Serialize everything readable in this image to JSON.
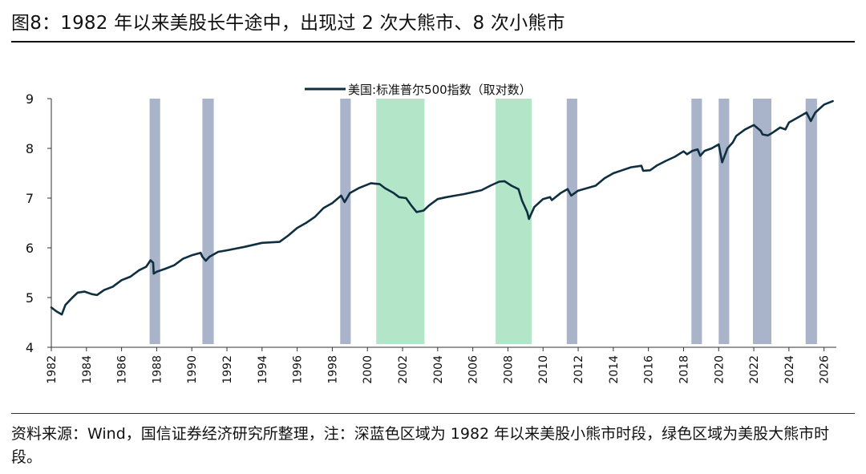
{
  "figure": {
    "title": "图8：1982 年以来美股长牛途中，出现过 2 次大熊市、8 次小熊市",
    "source_note": "资料来源：Wind，国信证券经济研究所整理，注：深蓝色区域为 1982 年以来美股小熊市时段，绿色区域为美股大熊市时段。"
  },
  "colors": {
    "line": "#0f2f40",
    "small_bear_band": "#a9b4ca",
    "big_bear_band": "#b3e6c8",
    "axis": "#333333",
    "text": "#111111"
  },
  "chart_data": {
    "type": "line",
    "title": "",
    "xlabel": "",
    "ylabel": "",
    "xlim": [
      1982,
      2026.7
    ],
    "ylim": [
      4,
      9
    ],
    "grid": false,
    "legend_position": "top-center",
    "x_ticks": [
      "1982",
      "1984",
      "1986",
      "1988",
      "1990",
      "1992",
      "1994",
      "1996",
      "1998",
      "2000",
      "2002",
      "2004",
      "2006",
      "2008",
      "2010",
      "2012",
      "2014",
      "2016",
      "2018",
      "2020",
      "2022",
      "2024",
      "2026"
    ],
    "y_ticks": [
      "4",
      "5",
      "6",
      "7",
      "8",
      "9"
    ],
    "series": [
      {
        "name": "美国:标准普尔500指数（取对数）",
        "points": [
          [
            1982.0,
            4.8
          ],
          [
            1982.3,
            4.72
          ],
          [
            1982.6,
            4.66
          ],
          [
            1982.8,
            4.85
          ],
          [
            1983.2,
            5.0
          ],
          [
            1983.5,
            5.1
          ],
          [
            1983.9,
            5.12
          ],
          [
            1984.3,
            5.07
          ],
          [
            1984.6,
            5.05
          ],
          [
            1985.0,
            5.15
          ],
          [
            1985.5,
            5.22
          ],
          [
            1986.0,
            5.35
          ],
          [
            1986.5,
            5.42
          ],
          [
            1987.0,
            5.55
          ],
          [
            1987.4,
            5.62
          ],
          [
            1987.65,
            5.75
          ],
          [
            1987.8,
            5.7
          ],
          [
            1987.83,
            5.48
          ],
          [
            1988.0,
            5.52
          ],
          [
            1988.5,
            5.58
          ],
          [
            1989.0,
            5.65
          ],
          [
            1989.5,
            5.78
          ],
          [
            1990.0,
            5.85
          ],
          [
            1990.5,
            5.9
          ],
          [
            1990.6,
            5.82
          ],
          [
            1990.8,
            5.74
          ],
          [
            1991.0,
            5.82
          ],
          [
            1991.5,
            5.92
          ],
          [
            1992.0,
            5.95
          ],
          [
            1993.0,
            6.02
          ],
          [
            1994.0,
            6.1
          ],
          [
            1994.5,
            6.11
          ],
          [
            1995.0,
            6.12
          ],
          [
            1995.5,
            6.25
          ],
          [
            1996.0,
            6.4
          ],
          [
            1996.5,
            6.5
          ],
          [
            1997.0,
            6.62
          ],
          [
            1997.5,
            6.8
          ],
          [
            1998.0,
            6.9
          ],
          [
            1998.5,
            7.05
          ],
          [
            1998.7,
            6.92
          ],
          [
            1999.0,
            7.1
          ],
          [
            1999.5,
            7.2
          ],
          [
            2000.2,
            7.3
          ],
          [
            2000.7,
            7.28
          ],
          [
            2001.0,
            7.2
          ],
          [
            2001.5,
            7.1
          ],
          [
            2001.8,
            7.02
          ],
          [
            2002.2,
            7.0
          ],
          [
            2002.5,
            6.85
          ],
          [
            2002.8,
            6.72
          ],
          [
            2003.2,
            6.75
          ],
          [
            2003.5,
            6.85
          ],
          [
            2004.0,
            6.98
          ],
          [
            2004.5,
            7.02
          ],
          [
            2005.0,
            7.05
          ],
          [
            2005.5,
            7.08
          ],
          [
            2006.0,
            7.12
          ],
          [
            2006.5,
            7.16
          ],
          [
            2007.0,
            7.25
          ],
          [
            2007.5,
            7.33
          ],
          [
            2007.8,
            7.34
          ],
          [
            2008.2,
            7.25
          ],
          [
            2008.6,
            7.18
          ],
          [
            2008.8,
            6.95
          ],
          [
            2009.1,
            6.72
          ],
          [
            2009.2,
            6.58
          ],
          [
            2009.5,
            6.82
          ],
          [
            2010.0,
            6.98
          ],
          [
            2010.4,
            7.02
          ],
          [
            2010.5,
            6.96
          ],
          [
            2011.0,
            7.1
          ],
          [
            2011.4,
            7.18
          ],
          [
            2011.6,
            7.05
          ],
          [
            2012.0,
            7.15
          ],
          [
            2012.5,
            7.2
          ],
          [
            2013.0,
            7.25
          ],
          [
            2013.5,
            7.4
          ],
          [
            2014.0,
            7.5
          ],
          [
            2014.5,
            7.56
          ],
          [
            2015.0,
            7.62
          ],
          [
            2015.6,
            7.65
          ],
          [
            2015.7,
            7.55
          ],
          [
            2016.1,
            7.56
          ],
          [
            2016.5,
            7.66
          ],
          [
            2017.0,
            7.75
          ],
          [
            2017.5,
            7.83
          ],
          [
            2018.0,
            7.94
          ],
          [
            2018.2,
            7.88
          ],
          [
            2018.5,
            7.95
          ],
          [
            2018.8,
            7.98
          ],
          [
            2018.95,
            7.85
          ],
          [
            2019.2,
            7.95
          ],
          [
            2019.6,
            8.0
          ],
          [
            2020.0,
            8.08
          ],
          [
            2020.2,
            7.72
          ],
          [
            2020.5,
            8.0
          ],
          [
            2020.8,
            8.12
          ],
          [
            2021.0,
            8.25
          ],
          [
            2021.5,
            8.38
          ],
          [
            2022.0,
            8.47
          ],
          [
            2022.4,
            8.35
          ],
          [
            2022.5,
            8.28
          ],
          [
            2022.8,
            8.26
          ],
          [
            2023.0,
            8.3
          ],
          [
            2023.5,
            8.42
          ],
          [
            2023.8,
            8.38
          ],
          [
            2024.0,
            8.52
          ],
          [
            2024.5,
            8.62
          ],
          [
            2025.0,
            8.72
          ],
          [
            2025.25,
            8.55
          ],
          [
            2025.5,
            8.72
          ],
          [
            2026.0,
            8.88
          ],
          [
            2026.5,
            8.95
          ]
        ]
      }
    ],
    "small_bear_periods": [
      [
        1987.6,
        1988.2
      ],
      [
        1990.6,
        1991.25
      ],
      [
        1998.45,
        1999.05
      ],
      [
        2011.35,
        2011.95
      ],
      [
        2018.45,
        2019.05
      ],
      [
        2020.0,
        2020.6
      ],
      [
        2021.95,
        2023.0
      ],
      [
        2024.95,
        2025.6
      ]
    ],
    "big_bear_periods": [
      [
        2000.5,
        2003.25
      ],
      [
        2007.3,
        2009.35
      ]
    ]
  }
}
